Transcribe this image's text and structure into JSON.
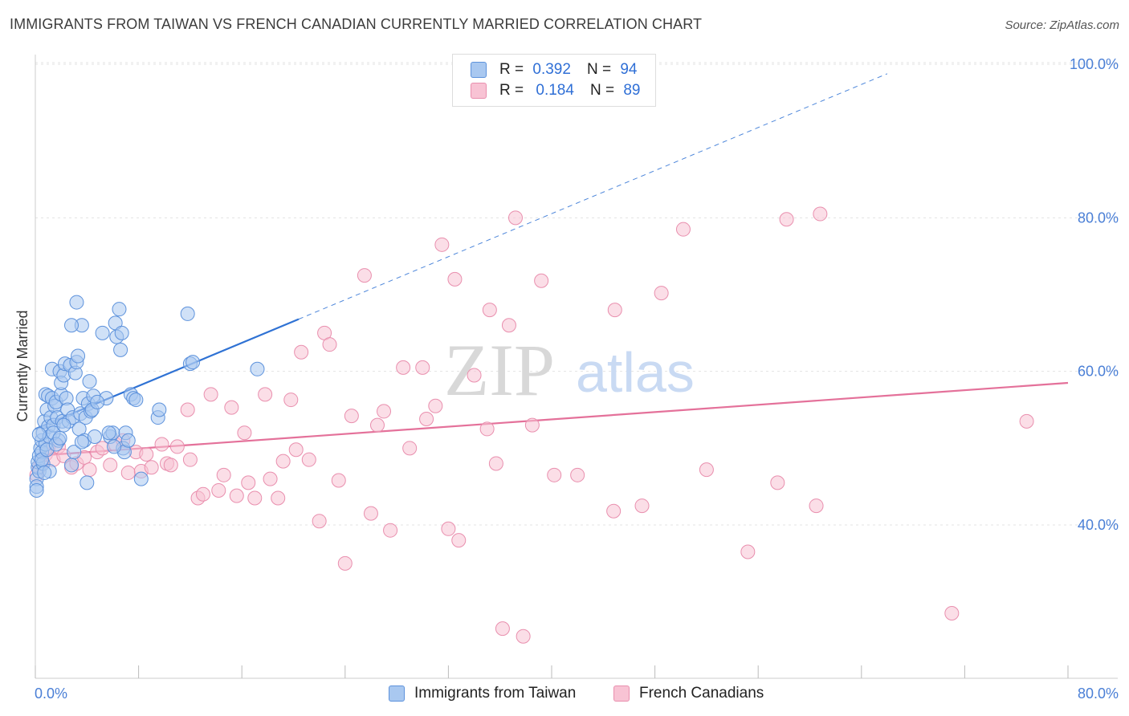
{
  "title": "IMMIGRANTS FROM TAIWAN VS FRENCH CANADIAN CURRENTLY MARRIED CORRELATION CHART",
  "source": "Source: ZipAtlas.com",
  "watermark": {
    "zip": "ZIP",
    "atlas": "atlas"
  },
  "legend": {
    "rows": [
      {
        "r_label": "R =",
        "r_value": "0.392",
        "n_label": "N =",
        "n_value": "94"
      },
      {
        "r_label": "R =",
        "r_value": "0.184",
        "n_label": "N =",
        "n_value": "89"
      }
    ]
  },
  "bottom_legend": [
    "Immigrants from Taiwan",
    "French Canadians"
  ],
  "colors": {
    "blue_fill": "#a9c8f0",
    "blue_stroke": "#5d92dc",
    "blue_line": "#2f72d4",
    "pink_fill": "#f8c3d4",
    "pink_stroke": "#e98fae",
    "pink_line": "#e4719a",
    "tick_text": "#4a7fd6"
  },
  "chart_data": {
    "type": "scatter",
    "title": "IMMIGRANTS FROM TAIWAN VS FRENCH CANADIAN CURRENTLY MARRIED CORRELATION CHART",
    "xlabel": "",
    "ylabel": "Currently Married",
    "xlim": [
      0,
      80
    ],
    "ylim": [
      20,
      102
    ],
    "x_tick_labels": [
      "0.0%",
      "80.0%"
    ],
    "y_ticks": [
      40,
      60,
      80,
      100
    ],
    "y_tick_labels": [
      "40.0%",
      "60.0%",
      "80.0%",
      "100.0%"
    ],
    "grid": "horizontal dashed",
    "legend_position": "top-center",
    "series": [
      {
        "name": "Immigrants from Taiwan",
        "r": 0.392,
        "n": 94,
        "trend": {
          "x0": 0,
          "y0": 52.5,
          "x1": 20.4,
          "y1": 66.8,
          "dashed_to_x": 80,
          "dashed_to_y": 108.6
        },
        "points": [
          [
            0.1,
            46.0
          ],
          [
            0.1,
            45.0
          ],
          [
            0.1,
            44.5
          ],
          [
            0.2,
            47.5
          ],
          [
            0.2,
            48.2
          ],
          [
            0.3,
            49.0
          ],
          [
            0.3,
            47.0
          ],
          [
            0.4,
            50.0
          ],
          [
            0.5,
            51.0
          ],
          [
            0.5,
            49.5
          ],
          [
            0.6,
            52.0
          ],
          [
            0.6,
            48.0
          ],
          [
            0.7,
            53.5
          ],
          [
            0.8,
            50.5
          ],
          [
            0.8,
            57.0
          ],
          [
            0.9,
            55.0
          ],
          [
            1.0,
            56.8
          ],
          [
            1.0,
            52.8
          ],
          [
            1.1,
            51.5
          ],
          [
            1.2,
            54.0
          ],
          [
            1.3,
            60.3
          ],
          [
            1.3,
            56.5
          ],
          [
            1.4,
            53.0
          ],
          [
            1.5,
            55.5
          ],
          [
            1.6,
            56.0
          ],
          [
            1.7,
            54.0
          ],
          [
            1.8,
            51.0
          ],
          [
            1.9,
            60.0
          ],
          [
            2.0,
            57.0
          ],
          [
            2.0,
            58.5
          ],
          [
            2.1,
            53.5
          ],
          [
            2.2,
            59.5
          ],
          [
            2.3,
            61.0
          ],
          [
            2.4,
            56.5
          ],
          [
            2.5,
            55.0
          ],
          [
            2.6,
            53.5
          ],
          [
            2.7,
            60.8
          ],
          [
            2.8,
            47.8
          ],
          [
            2.9,
            54.0
          ],
          [
            3.0,
            49.5
          ],
          [
            3.1,
            59.8
          ],
          [
            3.2,
            61.2
          ],
          [
            3.3,
            62.0
          ],
          [
            3.4,
            52.5
          ],
          [
            3.5,
            54.5
          ],
          [
            3.6,
            66.0
          ],
          [
            3.7,
            56.5
          ],
          [
            3.8,
            51.0
          ],
          [
            3.9,
            54.0
          ],
          [
            4.0,
            45.5
          ],
          [
            4.1,
            55.8
          ],
          [
            4.2,
            58.7
          ],
          [
            4.3,
            54.8
          ],
          [
            4.4,
            55.0
          ],
          [
            4.5,
            56.8
          ],
          [
            4.6,
            51.5
          ],
          [
            5.2,
            65.0
          ],
          [
            5.5,
            56.5
          ],
          [
            5.8,
            51.5
          ],
          [
            6.0,
            52.0
          ],
          [
            6.2,
            66.3
          ],
          [
            6.3,
            64.5
          ],
          [
            6.5,
            68.1
          ],
          [
            6.6,
            62.8
          ],
          [
            6.7,
            65.0
          ],
          [
            6.8,
            50.0
          ],
          [
            6.9,
            49.5
          ],
          [
            7.0,
            52.0
          ],
          [
            7.2,
            51.0
          ],
          [
            7.4,
            57.0
          ],
          [
            7.6,
            56.5
          ],
          [
            7.8,
            56.3
          ],
          [
            8.2,
            46.0
          ],
          [
            9.5,
            54.0
          ],
          [
            9.6,
            55.0
          ],
          [
            11.8,
            67.5
          ],
          [
            12.0,
            61.0
          ],
          [
            12.2,
            61.2
          ],
          [
            17.2,
            60.3
          ],
          [
            3.2,
            69.0
          ],
          [
            2.8,
            66.0
          ],
          [
            1.4,
            52.0
          ],
          [
            0.5,
            48.5
          ],
          [
            0.9,
            49.8
          ],
          [
            1.6,
            50.5
          ],
          [
            2.2,
            53.0
          ],
          [
            0.3,
            51.8
          ],
          [
            1.1,
            47.0
          ],
          [
            4.8,
            56.0
          ],
          [
            5.7,
            52.0
          ],
          [
            6.1,
            50.2
          ],
          [
            0.7,
            46.8
          ],
          [
            1.9,
            51.3
          ],
          [
            3.6,
            50.8
          ]
        ]
      },
      {
        "name": "French Canadians",
        "r": 0.184,
        "n": 89,
        "trend": {
          "x0": 0,
          "y0": 49.0,
          "x1": 80,
          "y1": 58.5
        },
        "points": [
          [
            0.1,
            46.5
          ],
          [
            0.3,
            47.5
          ],
          [
            0.5,
            48.0
          ],
          [
            0.8,
            49.2
          ],
          [
            1.0,
            50.0
          ],
          [
            1.4,
            48.5
          ],
          [
            1.8,
            50.2
          ],
          [
            2.2,
            49.0
          ],
          [
            2.8,
            47.5
          ],
          [
            3.2,
            48.0
          ],
          [
            3.8,
            48.8
          ],
          [
            4.2,
            47.2
          ],
          [
            4.8,
            49.5
          ],
          [
            5.2,
            50.0
          ],
          [
            5.8,
            47.8
          ],
          [
            6.2,
            50.5
          ],
          [
            6.8,
            51.0
          ],
          [
            7.2,
            46.8
          ],
          [
            7.8,
            49.5
          ],
          [
            8.2,
            47.0
          ],
          [
            8.6,
            49.2
          ],
          [
            9.0,
            47.5
          ],
          [
            9.8,
            50.5
          ],
          [
            10.2,
            48.0
          ],
          [
            10.5,
            47.8
          ],
          [
            11.0,
            50.2
          ],
          [
            11.8,
            55.0
          ],
          [
            12.0,
            48.5
          ],
          [
            12.6,
            43.5
          ],
          [
            13.0,
            44.0
          ],
          [
            13.6,
            57.0
          ],
          [
            14.2,
            44.5
          ],
          [
            14.6,
            46.5
          ],
          [
            15.2,
            55.3
          ],
          [
            15.6,
            43.8
          ],
          [
            16.2,
            52.0
          ],
          [
            16.5,
            45.5
          ],
          [
            17.0,
            43.5
          ],
          [
            17.8,
            57.0
          ],
          [
            18.2,
            46.0
          ],
          [
            18.8,
            43.5
          ],
          [
            19.2,
            48.3
          ],
          [
            19.8,
            56.3
          ],
          [
            20.2,
            49.8
          ],
          [
            20.6,
            62.5
          ],
          [
            21.2,
            48.5
          ],
          [
            22.0,
            40.5
          ],
          [
            22.4,
            65.0
          ],
          [
            22.8,
            63.5
          ],
          [
            23.5,
            45.8
          ],
          [
            24.0,
            35.0
          ],
          [
            24.5,
            54.2
          ],
          [
            25.5,
            72.5
          ],
          [
            26.0,
            41.5
          ],
          [
            26.5,
            53.0
          ],
          [
            27.0,
            54.8
          ],
          [
            27.5,
            39.3
          ],
          [
            28.5,
            60.5
          ],
          [
            29.0,
            50.0
          ],
          [
            30.0,
            60.5
          ],
          [
            30.3,
            53.8
          ],
          [
            31.0,
            55.5
          ],
          [
            31.5,
            76.5
          ],
          [
            32.0,
            39.5
          ],
          [
            32.5,
            72.0
          ],
          [
            32.8,
            38.0
          ],
          [
            34.0,
            59.5
          ],
          [
            35.0,
            52.5
          ],
          [
            35.2,
            68.0
          ],
          [
            35.7,
            48.0
          ],
          [
            36.2,
            26.5
          ],
          [
            36.7,
            66.0
          ],
          [
            37.2,
            80.0
          ],
          [
            37.8,
            25.5
          ],
          [
            38.5,
            53.0
          ],
          [
            39.2,
            71.8
          ],
          [
            40.2,
            46.5
          ],
          [
            42.0,
            46.5
          ],
          [
            44.8,
            41.8
          ],
          [
            44.9,
            68.0
          ],
          [
            47.0,
            42.5
          ],
          [
            48.5,
            70.2
          ],
          [
            50.2,
            78.5
          ],
          [
            52.0,
            47.2
          ],
          [
            55.2,
            36.5
          ],
          [
            57.5,
            45.5
          ],
          [
            58.2,
            79.8
          ],
          [
            60.5,
            42.5
          ],
          [
            60.8,
            80.5
          ]
        ],
        "extra_points": [
          [
            71.0,
            28.5
          ],
          [
            76.8,
            53.5
          ]
        ]
      }
    ]
  }
}
